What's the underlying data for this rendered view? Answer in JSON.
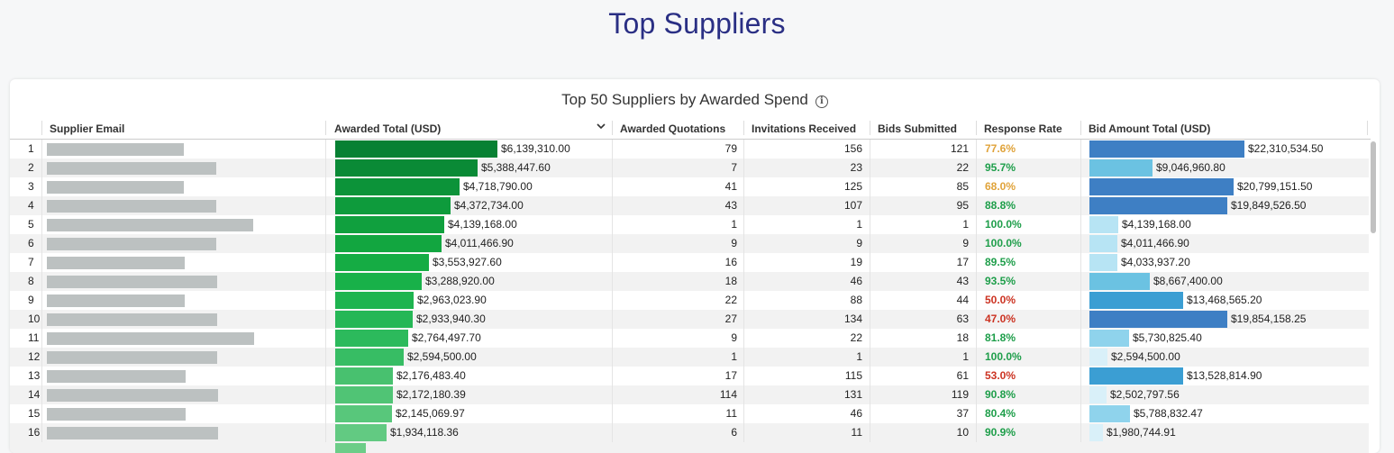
{
  "page_title": "Top Suppliers",
  "card": {
    "title": "Top 50 Suppliers by Awarded Spend",
    "info_icon": "info-icon"
  },
  "columns": {
    "supplier_email": "Supplier Email",
    "awarded_total": "Awarded Total (USD)",
    "awarded_quotations": "Awarded Quotations",
    "invitations_received": "Invitations Received",
    "bids_submitted": "Bids Submitted",
    "response_rate": "Response Rate",
    "bid_amount_total": "Bid Amount Total (USD)"
  },
  "colors": {
    "rate_high": "#1e9e4a",
    "rate_mid": "#e0a33a",
    "rate_low": "#cc3322"
  },
  "rows": [
    {
      "rank": "1",
      "awarded_total": "$6,139,310.00",
      "awarded_total_value": 6139310,
      "awarded_quotations": "79",
      "invitations_received": "156",
      "bids_submitted": "121",
      "response_rate": "77.6%",
      "bid_amount_total": "$22,310,534.50",
      "bid_amount_value": 22310534.5
    },
    {
      "rank": "2",
      "awarded_total": "$5,388,447.60",
      "awarded_total_value": 5388447.6,
      "awarded_quotations": "7",
      "invitations_received": "23",
      "bids_submitted": "22",
      "response_rate": "95.7%",
      "bid_amount_total": "$9,046,960.80",
      "bid_amount_value": 9046960.8
    },
    {
      "rank": "3",
      "awarded_total": "$4,718,790.00",
      "awarded_total_value": 4718790,
      "awarded_quotations": "41",
      "invitations_received": "125",
      "bids_submitted": "85",
      "response_rate": "68.0%",
      "bid_amount_total": "$20,799,151.50",
      "bid_amount_value": 20799151.5
    },
    {
      "rank": "4",
      "awarded_total": "$4,372,734.00",
      "awarded_total_value": 4372734,
      "awarded_quotations": "43",
      "invitations_received": "107",
      "bids_submitted": "95",
      "response_rate": "88.8%",
      "bid_amount_total": "$19,849,526.50",
      "bid_amount_value": 19849526.5
    },
    {
      "rank": "5",
      "awarded_total": "$4,139,168.00",
      "awarded_total_value": 4139168,
      "awarded_quotations": "1",
      "invitations_received": "1",
      "bids_submitted": "1",
      "response_rate": "100.0%",
      "bid_amount_total": "$4,139,168.00",
      "bid_amount_value": 4139168
    },
    {
      "rank": "6",
      "awarded_total": "$4,011,466.90",
      "awarded_total_value": 4011466.9,
      "awarded_quotations": "9",
      "invitations_received": "9",
      "bids_submitted": "9",
      "response_rate": "100.0%",
      "bid_amount_total": "$4,011,466.90",
      "bid_amount_value": 4011466.9
    },
    {
      "rank": "7",
      "awarded_total": "$3,553,927.60",
      "awarded_total_value": 3553927.6,
      "awarded_quotations": "16",
      "invitations_received": "19",
      "bids_submitted": "17",
      "response_rate": "89.5%",
      "bid_amount_total": "$4,033,937.20",
      "bid_amount_value": 4033937.2
    },
    {
      "rank": "8",
      "awarded_total": "$3,288,920.00",
      "awarded_total_value": 3288920,
      "awarded_quotations": "18",
      "invitations_received": "46",
      "bids_submitted": "43",
      "response_rate": "93.5%",
      "bid_amount_total": "$8,667,400.00",
      "bid_amount_value": 8667400
    },
    {
      "rank": "9",
      "awarded_total": "$2,963,023.90",
      "awarded_total_value": 2963023.9,
      "awarded_quotations": "22",
      "invitations_received": "88",
      "bids_submitted": "44",
      "response_rate": "50.0%",
      "bid_amount_total": "$13,468,565.20",
      "bid_amount_value": 13468565.2
    },
    {
      "rank": "10",
      "awarded_total": "$2,933,940.30",
      "awarded_total_value": 2933940.3,
      "awarded_quotations": "27",
      "invitations_received": "134",
      "bids_submitted": "63",
      "response_rate": "47.0%",
      "bid_amount_total": "$19,854,158.25",
      "bid_amount_value": 19854158.25
    },
    {
      "rank": "11",
      "awarded_total": "$2,764,497.70",
      "awarded_total_value": 2764497.7,
      "awarded_quotations": "9",
      "invitations_received": "22",
      "bids_submitted": "18",
      "response_rate": "81.8%",
      "bid_amount_total": "$5,730,825.40",
      "bid_amount_value": 5730825.4
    },
    {
      "rank": "12",
      "awarded_total": "$2,594,500.00",
      "awarded_total_value": 2594500,
      "awarded_quotations": "1",
      "invitations_received": "1",
      "bids_submitted": "1",
      "response_rate": "100.0%",
      "bid_amount_total": "$2,594,500.00",
      "bid_amount_value": 2594500
    },
    {
      "rank": "13",
      "awarded_total": "$2,176,483.40",
      "awarded_total_value": 2176483.4,
      "awarded_quotations": "17",
      "invitations_received": "115",
      "bids_submitted": "61",
      "response_rate": "53.0%",
      "bid_amount_total": "$13,528,814.90",
      "bid_amount_value": 13528814.9
    },
    {
      "rank": "14",
      "awarded_total": "$2,172,180.39",
      "awarded_total_value": 2172180.39,
      "awarded_quotations": "114",
      "invitations_received": "131",
      "bids_submitted": "119",
      "response_rate": "90.8%",
      "bid_amount_total": "$2,502,797.56",
      "bid_amount_value": 2502797.56
    },
    {
      "rank": "15",
      "awarded_total": "$2,145,069.97",
      "awarded_total_value": 2145069.97,
      "awarded_quotations": "11",
      "invitations_received": "46",
      "bids_submitted": "37",
      "response_rate": "80.4%",
      "bid_amount_total": "$5,788,832.47",
      "bid_amount_value": 5788832.47
    },
    {
      "rank": "16",
      "awarded_total": "$1,934,118.36",
      "awarded_total_value": 1934118.36,
      "awarded_quotations": "6",
      "invitations_received": "11",
      "bids_submitted": "10",
      "response_rate": "90.9%",
      "bid_amount_total": "$1,980,744.91",
      "bid_amount_value": 1980744.91
    }
  ]
}
